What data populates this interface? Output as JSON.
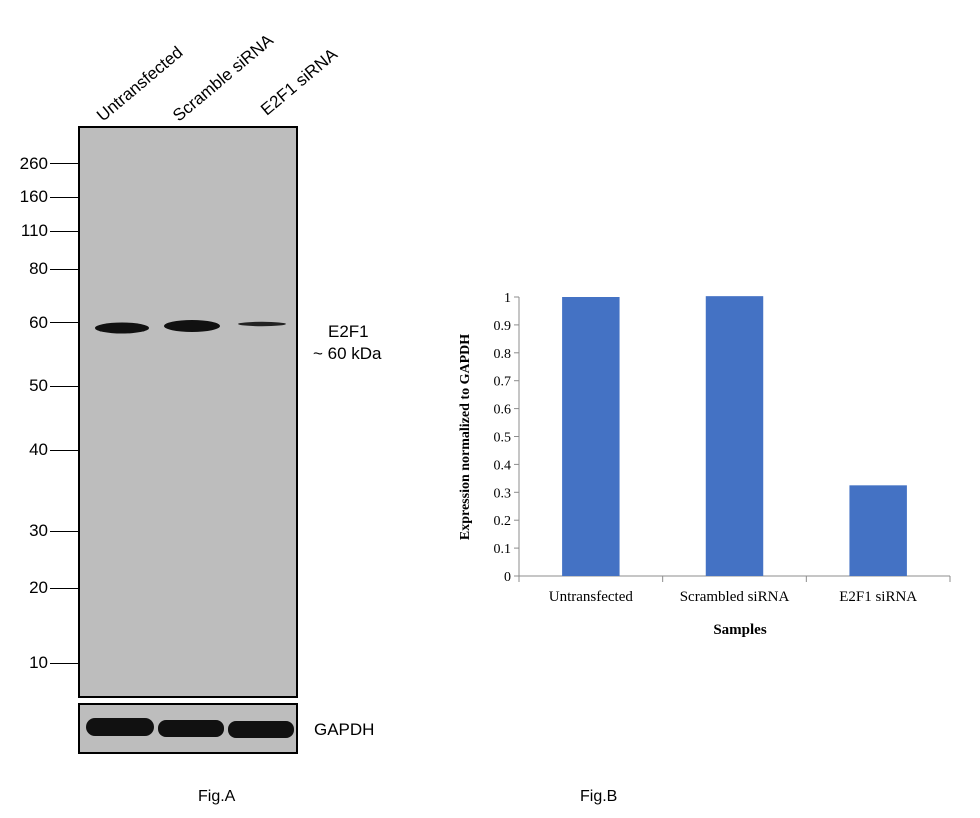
{
  "figA": {
    "lanes": [
      "Untransfected",
      "Scramble siRNA",
      "E2F1 siRNA"
    ],
    "markers": [
      "260",
      "160",
      "110",
      "80",
      "60",
      "50",
      "40",
      "30",
      "20",
      "10"
    ],
    "band_label": "E2F1",
    "band_size": "~ 60 kDa",
    "loading_control": "GAPDH",
    "caption": "Fig.A"
  },
  "chart_data": {
    "type": "bar",
    "categories": [
      "Untransfected",
      "Scrambled siRNA",
      "E2F1 siRNA"
    ],
    "values": [
      1.0,
      1.003,
      0.325
    ],
    "xlabel": "Samples",
    "ylabel": "Expression normalized to GAPDH",
    "ylim": [
      0,
      1
    ],
    "yticks": [
      "0",
      "0.1",
      "0.2",
      "0.3",
      "0.4",
      "0.5",
      "0.6",
      "0.7",
      "0.8",
      "0.9",
      "1"
    ],
    "bar_color": "#4472c4",
    "grid": false,
    "legend": "none"
  },
  "figB": {
    "caption": "Fig.B"
  }
}
